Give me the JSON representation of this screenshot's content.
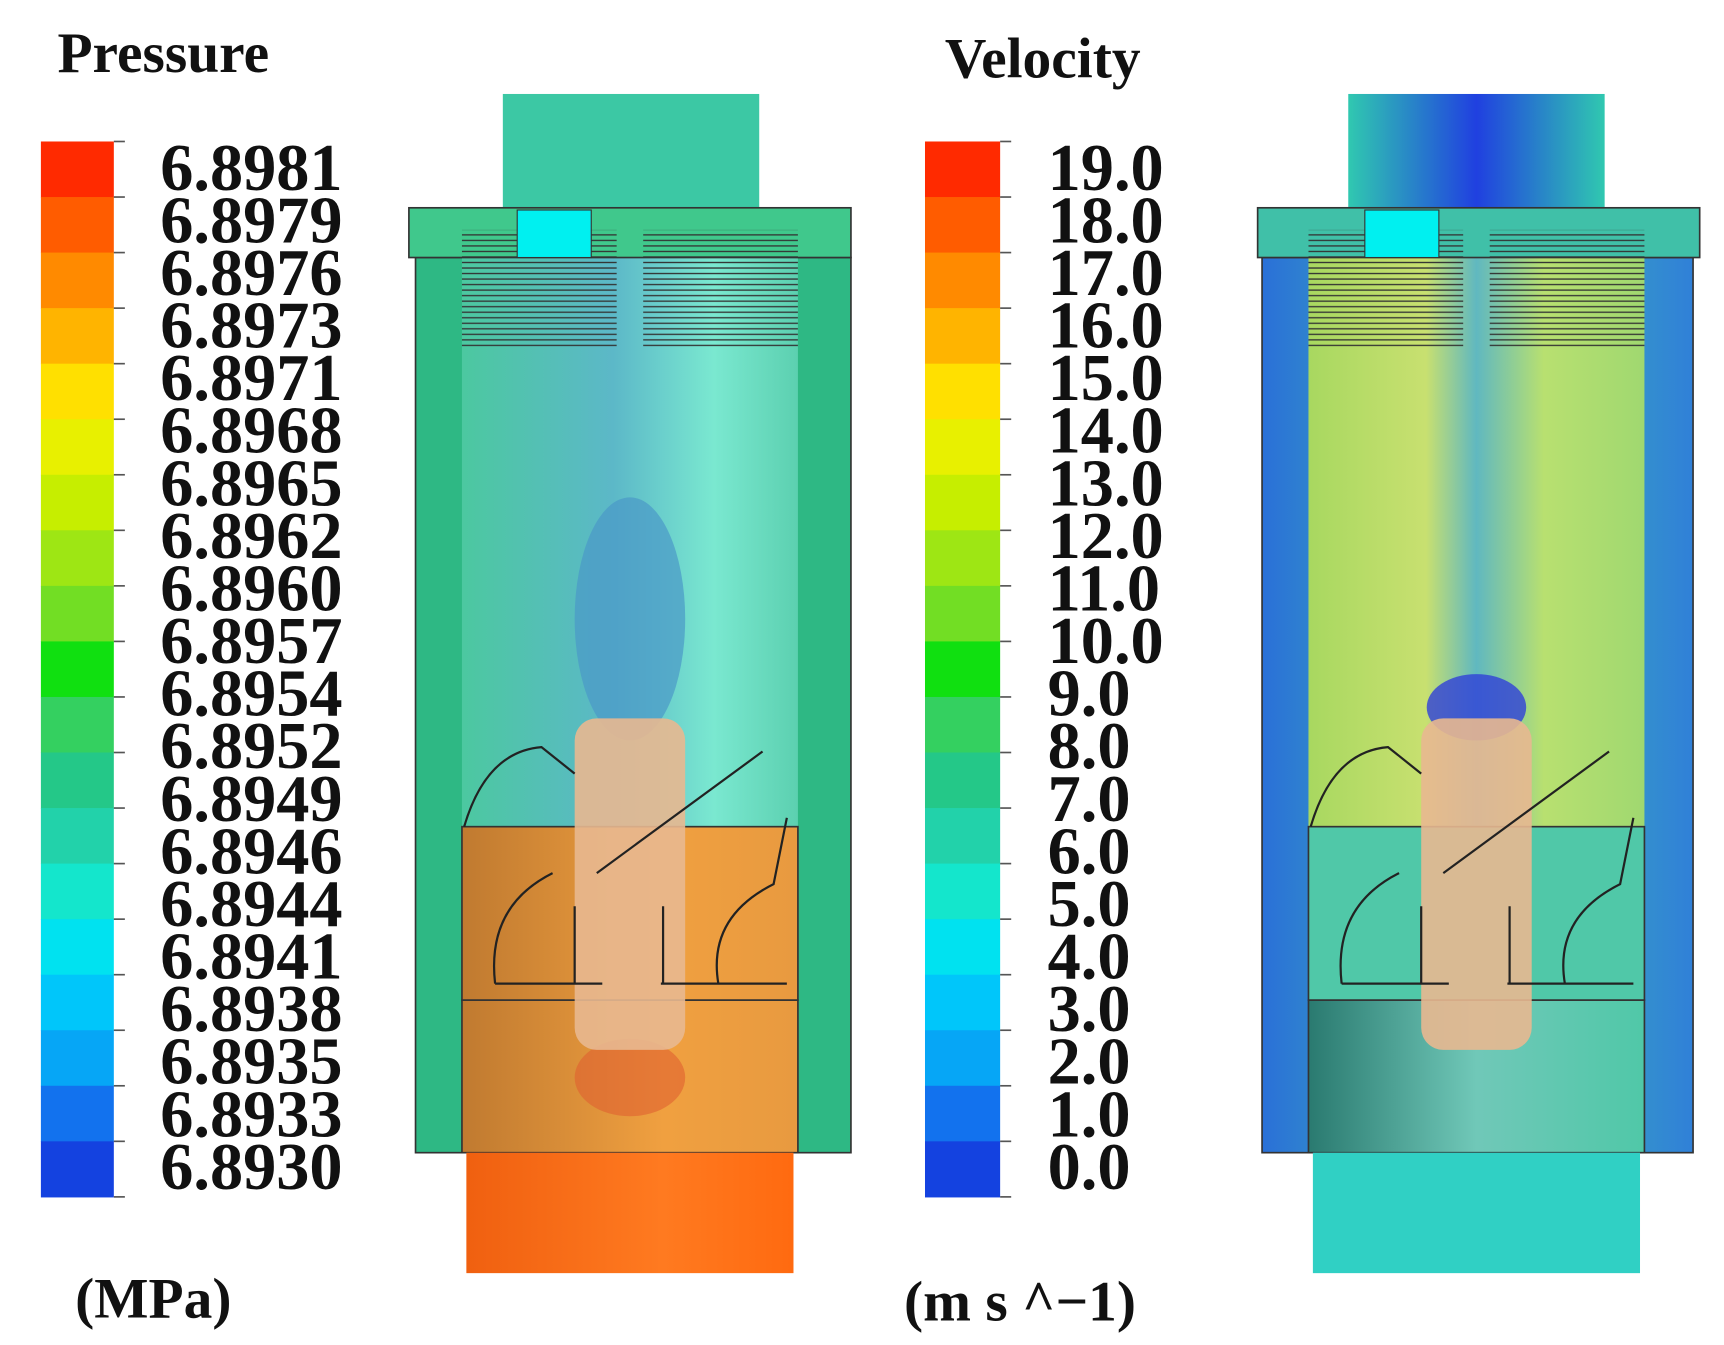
{
  "pressure": {
    "title": "Pressure",
    "unit": "(MPa)",
    "ticks": [
      "6.8981",
      "6.8979",
      "6.8976",
      "6.8973",
      "6.8971",
      "6.8968",
      "6.8965",
      "6.8962",
      "6.8960",
      "6.8957",
      "6.8954",
      "6.8952",
      "6.8949",
      "6.8946",
      "6.8944",
      "6.8941",
      "6.8938",
      "6.8935",
      "6.8933",
      "6.8930"
    ],
    "colors": [
      "#ff2a00",
      "#ff5c00",
      "#ff8a00",
      "#ffb400",
      "#ffe000",
      "#e8f000",
      "#c6ee00",
      "#9ee614",
      "#72de24",
      "#10e010",
      "#34d060",
      "#24c888",
      "#22d2aa",
      "#14e6cc",
      "#00e2f0",
      "#00c6fa",
      "#06a6f6",
      "#1272ee",
      "#1442e0"
    ]
  },
  "velocity": {
    "title": "Velocity",
    "unit": "(m s ^−1)",
    "ticks": [
      "19.0",
      "18.0",
      "17.0",
      "16.0",
      "15.0",
      "14.0",
      "13.0",
      "12.0",
      "11.0",
      "10.0",
      "9.0",
      "8.0",
      "7.0",
      "6.0",
      "5.0",
      "4.0",
      "3.0",
      "2.0",
      "1.0",
      "0.0"
    ],
    "colors": [
      "#ff2a00",
      "#ff5c00",
      "#ff8a00",
      "#ffb400",
      "#ffe000",
      "#e8f000",
      "#c6ee00",
      "#9ee614",
      "#72de24",
      "#10e010",
      "#34d060",
      "#24c888",
      "#22d2aa",
      "#14e6cc",
      "#00e2f0",
      "#00c6fa",
      "#06a6f6",
      "#1272ee",
      "#1442e0"
    ]
  }
}
